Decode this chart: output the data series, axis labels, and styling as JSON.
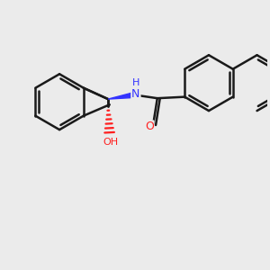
{
  "background_color": "#ebebeb",
  "bond_color": "#1a1a1a",
  "nitrogen_color": "#3333ff",
  "oxygen_color": "#ff2020",
  "bond_width": 1.8,
  "figsize": [
    3.0,
    3.0
  ],
  "dpi": 100,
  "NH_label": "H\nN",
  "OH_label": "OH",
  "O_label": "O"
}
